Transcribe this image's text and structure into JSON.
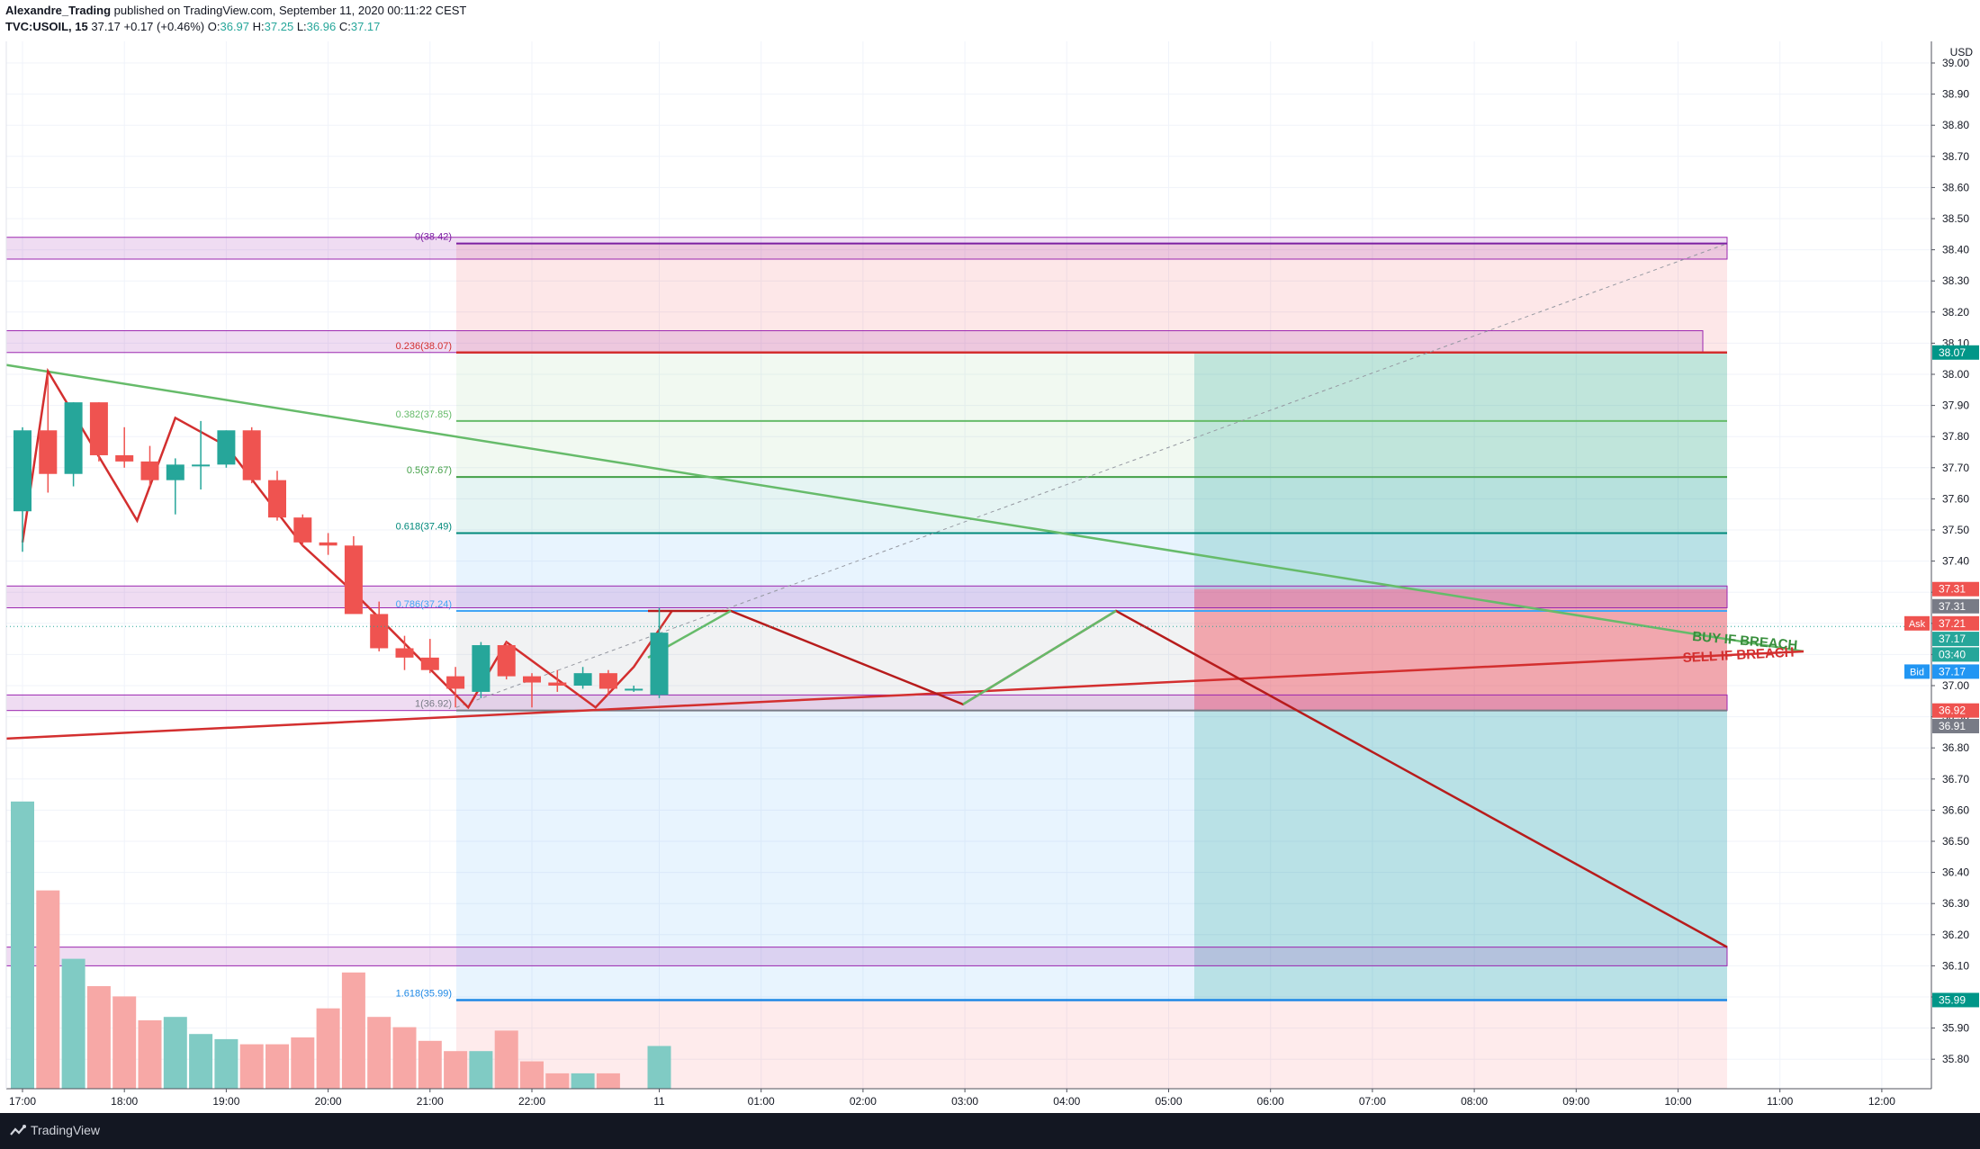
{
  "header": {
    "author": "Alexandre_Trading",
    "published": " published on TradingView.com, September 11, 2020 00:11:22 CEST",
    "symbol": "TVC:USOIL, 15",
    "last": " 37.17 ",
    "change": "+0.17 (+0.46%)",
    "o_label": " O:",
    "o_value": "36.97",
    "h_label": " H:",
    "h_value": "37.25",
    "l_label": " L:",
    "l_value": "36.96",
    "c_label": " C:",
    "c_value": "37.17"
  },
  "footer": {
    "brand": "TradingView"
  },
  "colors": {
    "up": "#26a69a",
    "down": "#ef5350",
    "vol_up": "#80cbc4",
    "vol_down": "#f7a8a6",
    "fib_line_red": "#d32f2f",
    "zone_purple": "#9c27b0",
    "green_line": "#66bb6a",
    "red_line": "#d32f2f"
  },
  "chart_data": {
    "type": "candlestick",
    "currency": "USD",
    "y_range": [
      35.73,
      39.1
    ],
    "y_ticks": [
      "39.00",
      "38.90",
      "38.80",
      "38.70",
      "38.60",
      "38.50",
      "38.40",
      "38.30",
      "38.20",
      "38.10",
      "38.00",
      "37.90",
      "37.80",
      "37.70",
      "37.60",
      "37.50",
      "37.40",
      "37.30",
      "37.20",
      "37.10",
      "37.00",
      "36.90",
      "36.80",
      "36.70",
      "36.60",
      "36.50",
      "36.40",
      "36.30",
      "36.20",
      "36.10",
      "36.00",
      "35.90",
      "35.80"
    ],
    "x_ticks": [
      {
        "label": "17:00",
        "t": 0
      },
      {
        "label": "18:00",
        "t": 4
      },
      {
        "label": "19:00",
        "t": 8
      },
      {
        "label": "20:00",
        "t": 12
      },
      {
        "label": "21:00",
        "t": 16
      },
      {
        "label": "22:00",
        "t": 20
      },
      {
        "label": "11",
        "t": 25
      },
      {
        "label": "01:00",
        "t": 29
      },
      {
        "label": "02:00",
        "t": 33
      },
      {
        "label": "03:00",
        "t": 37
      },
      {
        "label": "04:00",
        "t": 41
      },
      {
        "label": "05:00",
        "t": 45
      },
      {
        "label": "06:00",
        "t": 49
      },
      {
        "label": "07:00",
        "t": 53
      },
      {
        "label": "08:00",
        "t": 57
      },
      {
        "label": "09:00",
        "t": 61
      },
      {
        "label": "10:00",
        "t": 65
      },
      {
        "label": "11:00",
        "t": 69
      },
      {
        "label": "12:00",
        "t": 73
      }
    ],
    "candles": [
      {
        "o": 37.56,
        "h": 37.83,
        "l": 37.43,
        "c": 37.82,
        "v": 8.4
      },
      {
        "o": 37.82,
        "h": 38.0,
        "l": 37.62,
        "c": 37.68,
        "v": 5.8
      },
      {
        "o": 37.68,
        "h": 37.91,
        "l": 37.64,
        "c": 37.91,
        "v": 3.8
      },
      {
        "o": 37.91,
        "h": 37.91,
        "l": 37.72,
        "c": 37.74,
        "v": 3.0
      },
      {
        "o": 37.74,
        "h": 37.83,
        "l": 37.7,
        "c": 37.72,
        "v": 2.7
      },
      {
        "o": 37.72,
        "h": 37.77,
        "l": 37.64,
        "c": 37.66,
        "v": 2.0
      },
      {
        "o": 37.66,
        "h": 37.73,
        "l": 37.55,
        "c": 37.71,
        "v": 2.1
      },
      {
        "o": 37.71,
        "h": 37.85,
        "l": 37.63,
        "c": 37.71,
        "v": 1.6
      },
      {
        "o": 37.71,
        "h": 37.82,
        "l": 37.7,
        "c": 37.82,
        "v": 1.45
      },
      {
        "o": 37.82,
        "h": 37.83,
        "l": 37.65,
        "c": 37.66,
        "v": 1.3
      },
      {
        "o": 37.66,
        "h": 37.69,
        "l": 37.53,
        "c": 37.54,
        "v": 1.3
      },
      {
        "o": 37.54,
        "h": 37.55,
        "l": 37.45,
        "c": 37.46,
        "v": 1.5
      },
      {
        "o": 37.46,
        "h": 37.49,
        "l": 37.42,
        "c": 37.45,
        "v": 2.35
      },
      {
        "o": 37.45,
        "h": 37.48,
        "l": 37.25,
        "c": 37.23,
        "v": 3.4
      },
      {
        "o": 37.23,
        "h": 37.27,
        "l": 37.11,
        "c": 37.12,
        "v": 2.1
      },
      {
        "o": 37.12,
        "h": 37.16,
        "l": 37.05,
        "c": 37.09,
        "v": 1.8
      },
      {
        "o": 37.09,
        "h": 37.15,
        "l": 37.04,
        "c": 37.05,
        "v": 1.4
      },
      {
        "o": 37.03,
        "h": 37.06,
        "l": 36.93,
        "c": 36.99,
        "v": 1.1
      },
      {
        "o": 36.98,
        "h": 37.14,
        "l": 36.96,
        "c": 37.13,
        "v": 1.1
      },
      {
        "o": 37.13,
        "h": 37.14,
        "l": 37.02,
        "c": 37.03,
        "v": 1.7
      },
      {
        "o": 37.03,
        "h": 37.04,
        "l": 36.93,
        "c": 37.01,
        "v": 0.8
      },
      {
        "o": 37.01,
        "h": 37.05,
        "l": 36.98,
        "c": 37.0,
        "v": 0.45
      },
      {
        "o": 37.0,
        "h": 37.06,
        "l": 36.99,
        "c": 37.04,
        "v": 0.45
      },
      {
        "o": 37.04,
        "h": 37.05,
        "l": 36.97,
        "c": 36.99,
        "v": 0.45
      },
      {
        "o": 36.99,
        "h": 37.0,
        "l": 36.98,
        "c": 36.99,
        "v": 0.0
      },
      {
        "o": 36.97,
        "h": 37.25,
        "l": 36.96,
        "c": 37.17,
        "v": 1.25
      }
    ],
    "fib_levels": [
      {
        "label": "0(38.42)",
        "price": 38.42,
        "color": "#7b1fa2"
      },
      {
        "label": "0.236(38.07)",
        "price": 38.07,
        "color": "#d32f2f"
      },
      {
        "label": "0.382(37.85)",
        "price": 37.85,
        "color": "#66bb6a"
      },
      {
        "label": "0.5(37.67)",
        "price": 37.67,
        "color": "#43a047"
      },
      {
        "label": "0.618(37.49)",
        "price": 37.49,
        "color": "#00897b"
      },
      {
        "label": "0.786(37.24)",
        "price": 37.24,
        "color": "#42a5f5"
      },
      {
        "label": "1(36.92)",
        "price": 36.92,
        "color": "#787b86"
      },
      {
        "label": "1.618(35.99)",
        "price": 35.99,
        "color": "#1e88e5"
      }
    ],
    "annotations": [
      "BUY IF BREACH",
      "SELL IF BREACH"
    ],
    "price_labels": [
      {
        "text": "38.07",
        "price": 38.07,
        "bg": "#009688"
      },
      {
        "text": "37.31",
        "price": 37.31,
        "bg": "#ef5350"
      },
      {
        "text": "37.31",
        "price": 37.255,
        "bg": "#787b86"
      },
      {
        "text": "37.21",
        "price": 37.2,
        "bg": "#ef5350",
        "tag": "Ask"
      },
      {
        "text": "37.17",
        "price": 37.15,
        "bg": "#26a69a"
      },
      {
        "text": "03:40",
        "price": 37.1,
        "bg": "#26a69a"
      },
      {
        "text": "37.17",
        "price": 37.045,
        "bg": "#2196f3",
        "tag": "Bid"
      },
      {
        "text": "36.92",
        "price": 36.92,
        "bg": "#ef5350"
      },
      {
        "text": "36.91",
        "price": 36.87,
        "bg": "#787b86"
      },
      {
        "text": "35.99",
        "price": 35.99,
        "bg": "#009688"
      }
    ]
  }
}
